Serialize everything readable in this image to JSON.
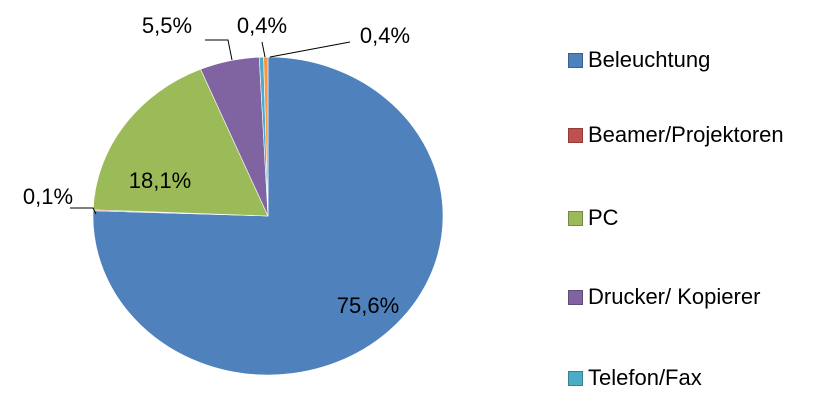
{
  "chart_data": {
    "type": "pie",
    "categories": [
      "Beleuchtung",
      "Beamer/Projektoren",
      "PC",
      "Drucker/ Kopierer",
      "Telefon/Fax",
      null
    ],
    "values": [
      75.6,
      0.1,
      18.1,
      5.5,
      0.4,
      0.4
    ],
    "value_labels": [
      "75,6%",
      "0,1%",
      "18,1%",
      "5,5%",
      "0,4%",
      "0,4%"
    ],
    "colors": [
      "#4f81bd",
      "#c0504d",
      "#9bbb59",
      "#8064a2",
      "#4bacc6",
      "#f79646"
    ],
    "legend": "right"
  }
}
